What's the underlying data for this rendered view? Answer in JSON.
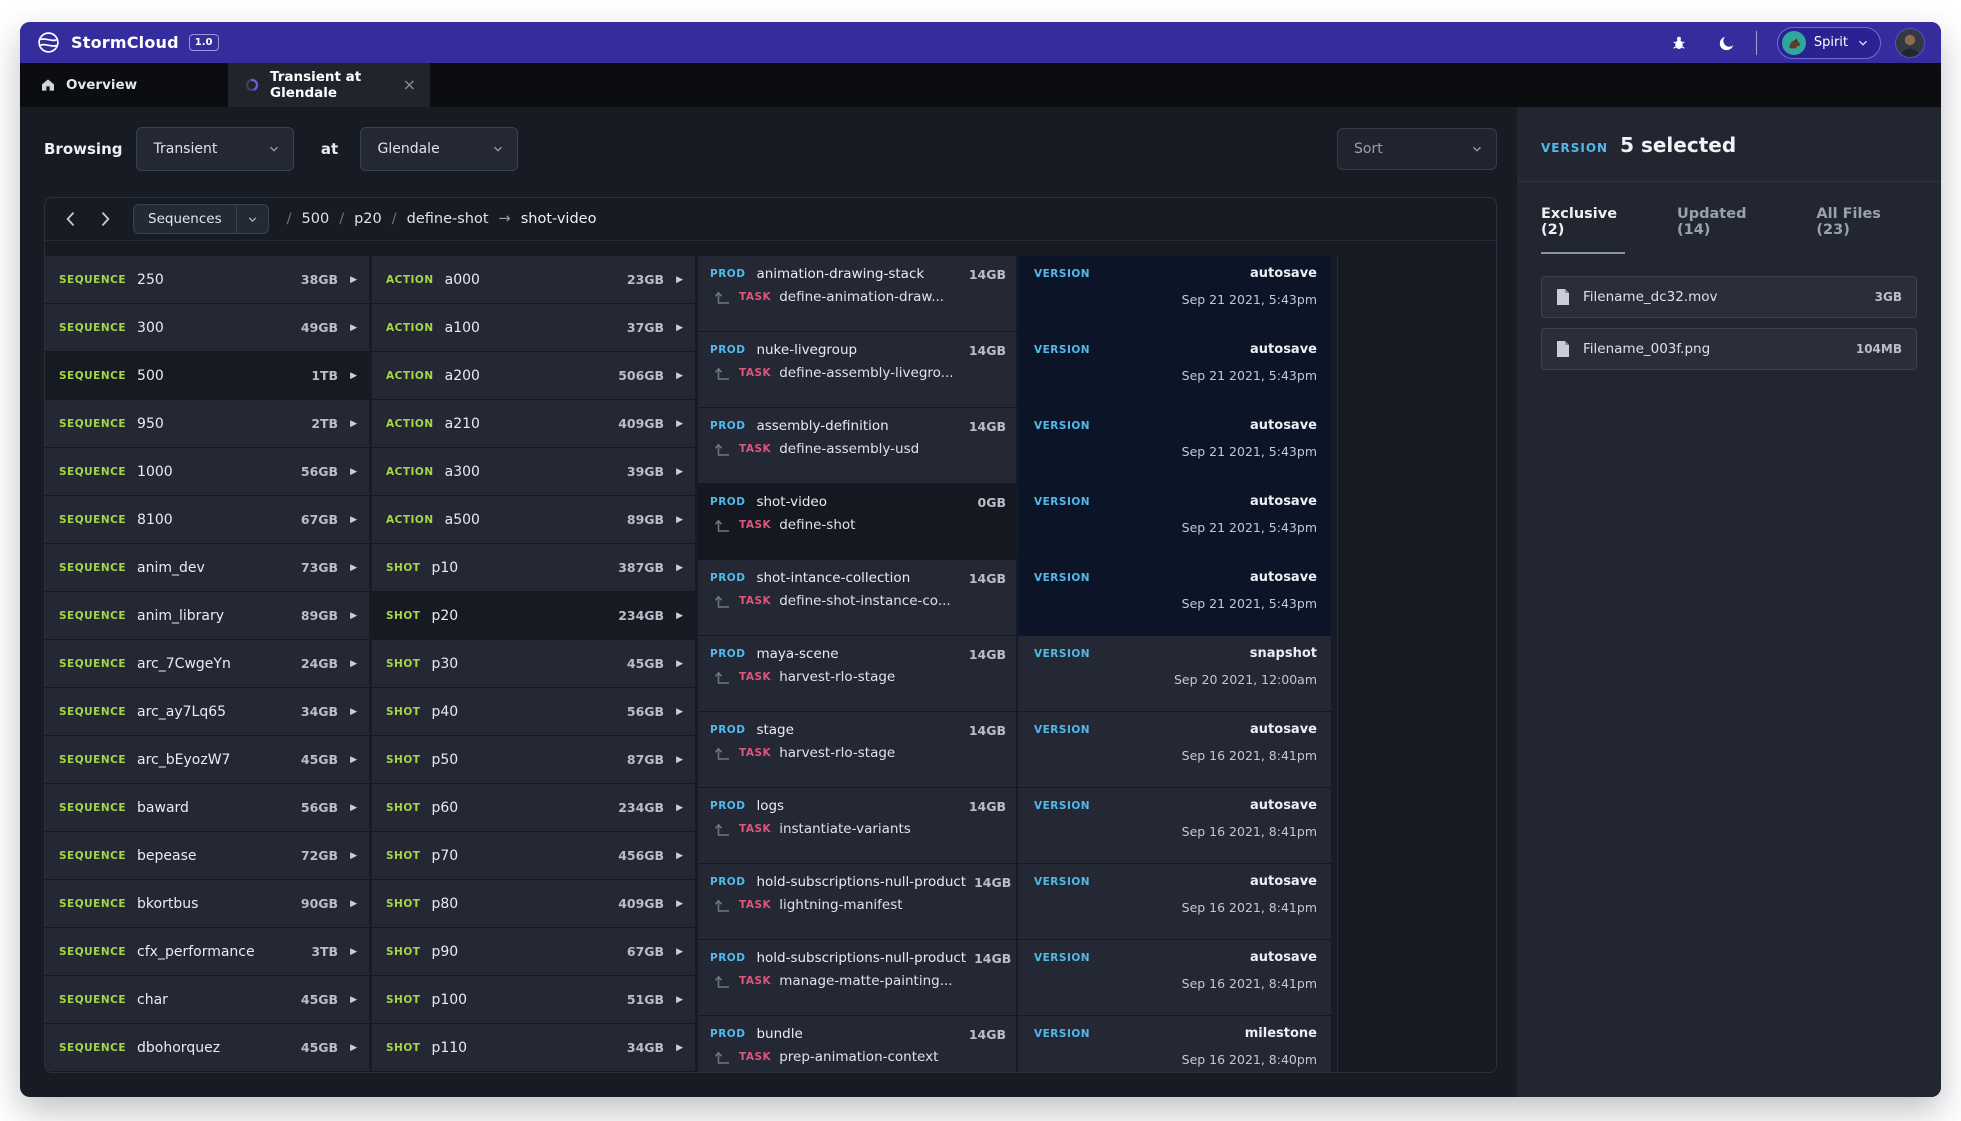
{
  "topbar": {
    "app_name": "StormCloud",
    "version_badge": "1.0",
    "user_name": "Spirit"
  },
  "tabs": {
    "overview": "Overview",
    "active": "Transient at Glendale",
    "close_glyph": "×"
  },
  "controls": {
    "browsing_label": "Browsing",
    "dataset": "Transient",
    "at_label": "at",
    "location": "Glendale",
    "sort_label": "Sort"
  },
  "breadcrumb": {
    "root_select": "Sequences",
    "separator": "/",
    "segments": [
      "500",
      "p20",
      "define-shot"
    ],
    "arrow": "→",
    "target": "shot-video"
  },
  "lists": {
    "sequences": [
      {
        "tag": "SEQUENCE",
        "name": "250",
        "size": "38GB",
        "selected": false
      },
      {
        "tag": "SEQUENCE",
        "name": "300",
        "size": "49GB",
        "selected": false
      },
      {
        "tag": "SEQUENCE",
        "name": "500",
        "size": "1TB",
        "selected": true
      },
      {
        "tag": "SEQUENCE",
        "name": "950",
        "size": "2TB",
        "selected": false
      },
      {
        "tag": "SEQUENCE",
        "name": "1000",
        "size": "56GB",
        "selected": false
      },
      {
        "tag": "SEQUENCE",
        "name": "8100",
        "size": "67GB",
        "selected": false
      },
      {
        "tag": "SEQUENCE",
        "name": "anim_dev",
        "size": "73GB",
        "selected": false
      },
      {
        "tag": "SEQUENCE",
        "name": "anim_library",
        "size": "89GB",
        "selected": false
      },
      {
        "tag": "SEQUENCE",
        "name": "arc_7CwgeYn",
        "size": "24GB",
        "selected": false
      },
      {
        "tag": "SEQUENCE",
        "name": "arc_ay7Lq65",
        "size": "34GB",
        "selected": false
      },
      {
        "tag": "SEQUENCE",
        "name": "arc_bEyozW7",
        "size": "45GB",
        "selected": false
      },
      {
        "tag": "SEQUENCE",
        "name": "baward",
        "size": "56GB",
        "selected": false
      },
      {
        "tag": "SEQUENCE",
        "name": "bepease",
        "size": "72GB",
        "selected": false
      },
      {
        "tag": "SEQUENCE",
        "name": "bkortbus",
        "size": "90GB",
        "selected": false
      },
      {
        "tag": "SEQUENCE",
        "name": "cfx_performance",
        "size": "3TB",
        "selected": false
      },
      {
        "tag": "SEQUENCE",
        "name": "char",
        "size": "45GB",
        "selected": false
      },
      {
        "tag": "SEQUENCE",
        "name": "dbohorquez",
        "size": "45GB",
        "selected": false
      }
    ],
    "actions_shots": [
      {
        "tag": "ACTION",
        "name": "a000",
        "size": "23GB",
        "selected": false
      },
      {
        "tag": "ACTION",
        "name": "a100",
        "size": "37GB",
        "selected": false
      },
      {
        "tag": "ACTION",
        "name": "a200",
        "size": "506GB",
        "selected": false
      },
      {
        "tag": "ACTION",
        "name": "a210",
        "size": "409GB",
        "selected": false
      },
      {
        "tag": "ACTION",
        "name": "a300",
        "size": "39GB",
        "selected": false
      },
      {
        "tag": "ACTION",
        "name": "a500",
        "size": "89GB",
        "selected": false
      },
      {
        "tag": "SHOT",
        "name": "p10",
        "size": "387GB",
        "selected": false
      },
      {
        "tag": "SHOT",
        "name": "p20",
        "size": "234GB",
        "selected": true
      },
      {
        "tag": "SHOT",
        "name": "p30",
        "size": "45GB",
        "selected": false
      },
      {
        "tag": "SHOT",
        "name": "p40",
        "size": "56GB",
        "selected": false
      },
      {
        "tag": "SHOT",
        "name": "p50",
        "size": "87GB",
        "selected": false
      },
      {
        "tag": "SHOT",
        "name": "p60",
        "size": "234GB",
        "selected": false
      },
      {
        "tag": "SHOT",
        "name": "p70",
        "size": "456GB",
        "selected": false
      },
      {
        "tag": "SHOT",
        "name": "p80",
        "size": "409GB",
        "selected": false
      },
      {
        "tag": "SHOT",
        "name": "p90",
        "size": "67GB",
        "selected": false
      },
      {
        "tag": "SHOT",
        "name": "p100",
        "size": "51GB",
        "selected": false
      },
      {
        "tag": "SHOT",
        "name": "p110",
        "size": "34GB",
        "selected": false
      }
    ],
    "products": [
      {
        "tag": "PROD",
        "name": "animation-drawing-stack",
        "size": "14GB",
        "task_tag": "TASK",
        "task": "define-animation-draw...",
        "version_label": "VERSION",
        "version_type": "autosave",
        "version_date": "Sep 21 2021, 5:43pm",
        "version_selected": true,
        "row_active": false
      },
      {
        "tag": "PROD",
        "name": "nuke-livegroup",
        "size": "14GB",
        "task_tag": "TASK",
        "task": "define-assembly-livegro...",
        "version_label": "VERSION",
        "version_type": "autosave",
        "version_date": "Sep 21 2021, 5:43pm",
        "version_selected": true,
        "row_active": false
      },
      {
        "tag": "PROD",
        "name": "assembly-definition",
        "size": "14GB",
        "task_tag": "TASK",
        "task": "define-assembly-usd",
        "version_label": "VERSION",
        "version_type": "autosave",
        "version_date": "Sep 21 2021, 5:43pm",
        "version_selected": true,
        "row_active": false
      },
      {
        "tag": "PROD",
        "name": "shot-video",
        "size": "0GB",
        "task_tag": "TASK",
        "task": "define-shot",
        "version_label": "VERSION",
        "version_type": "autosave",
        "version_date": "Sep 21 2021, 5:43pm",
        "version_selected": true,
        "row_active": true
      },
      {
        "tag": "PROD",
        "name": "shot-intance-collection",
        "size": "14GB",
        "task_tag": "TASK",
        "task": "define-shot-instance-co...",
        "version_label": "VERSION",
        "version_type": "autosave",
        "version_date": "Sep 21 2021, 5:43pm",
        "version_selected": true,
        "row_active": false
      },
      {
        "tag": "PROD",
        "name": "maya-scene",
        "size": "14GB",
        "task_tag": "TASK",
        "task": "harvest-rlo-stage",
        "version_label": "VERSION",
        "version_type": "snapshot",
        "version_date": "Sep 20 2021, 12:00am",
        "version_selected": false,
        "row_active": false
      },
      {
        "tag": "PROD",
        "name": "stage",
        "size": "14GB",
        "task_tag": "TASK",
        "task": "harvest-rlo-stage",
        "version_label": "VERSION",
        "version_type": "autosave",
        "version_date": "Sep 16 2021, 8:41pm",
        "version_selected": false,
        "row_active": false
      },
      {
        "tag": "PROD",
        "name": "logs",
        "size": "14GB",
        "task_tag": "TASK",
        "task": "instantiate-variants",
        "version_label": "VERSION",
        "version_type": "autosave",
        "version_date": "Sep 16 2021, 8:41pm",
        "version_selected": false,
        "row_active": false
      },
      {
        "tag": "PROD",
        "name": "hold-subscriptions-null-product",
        "size": "14GB",
        "task_tag": "TASK",
        "task": "lightning-manifest",
        "version_label": "VERSION",
        "version_type": "autosave",
        "version_date": "Sep 16 2021, 8:41pm",
        "version_selected": false,
        "row_active": false
      },
      {
        "tag": "PROD",
        "name": "hold-subscriptions-null-product",
        "size": "14GB",
        "task_tag": "TASK",
        "task": "manage-matte-painting...",
        "version_label": "VERSION",
        "version_type": "autosave",
        "version_date": "Sep 16 2021, 8:41pm",
        "version_selected": false,
        "row_active": false
      },
      {
        "tag": "PROD",
        "name": "bundle",
        "size": "14GB",
        "task_tag": "TASK",
        "task": "prep-animation-context",
        "version_label": "VERSION",
        "version_type": "milestone",
        "version_date": "Sep 16 2021, 8:40pm",
        "version_selected": false,
        "row_active": false
      }
    ]
  },
  "sidebar": {
    "version_label": "VERSION",
    "selected_text": "5 selected",
    "tabs": [
      {
        "label": "Exclusive (2)",
        "active": true
      },
      {
        "label": "Updated (14)",
        "active": false
      },
      {
        "label": "All Files (23)",
        "active": false
      }
    ],
    "files": [
      {
        "name": "Filename_dc32.mov",
        "size": "3GB"
      },
      {
        "name": "Filename_003f.png",
        "size": "104MB"
      }
    ]
  },
  "colors": {
    "topbar_purple": "#352d9e",
    "accent_green": "#a5d646",
    "accent_blue": "#52b9e9",
    "accent_pink": "#e0557c",
    "selected_version_bg": "#0c1527"
  }
}
